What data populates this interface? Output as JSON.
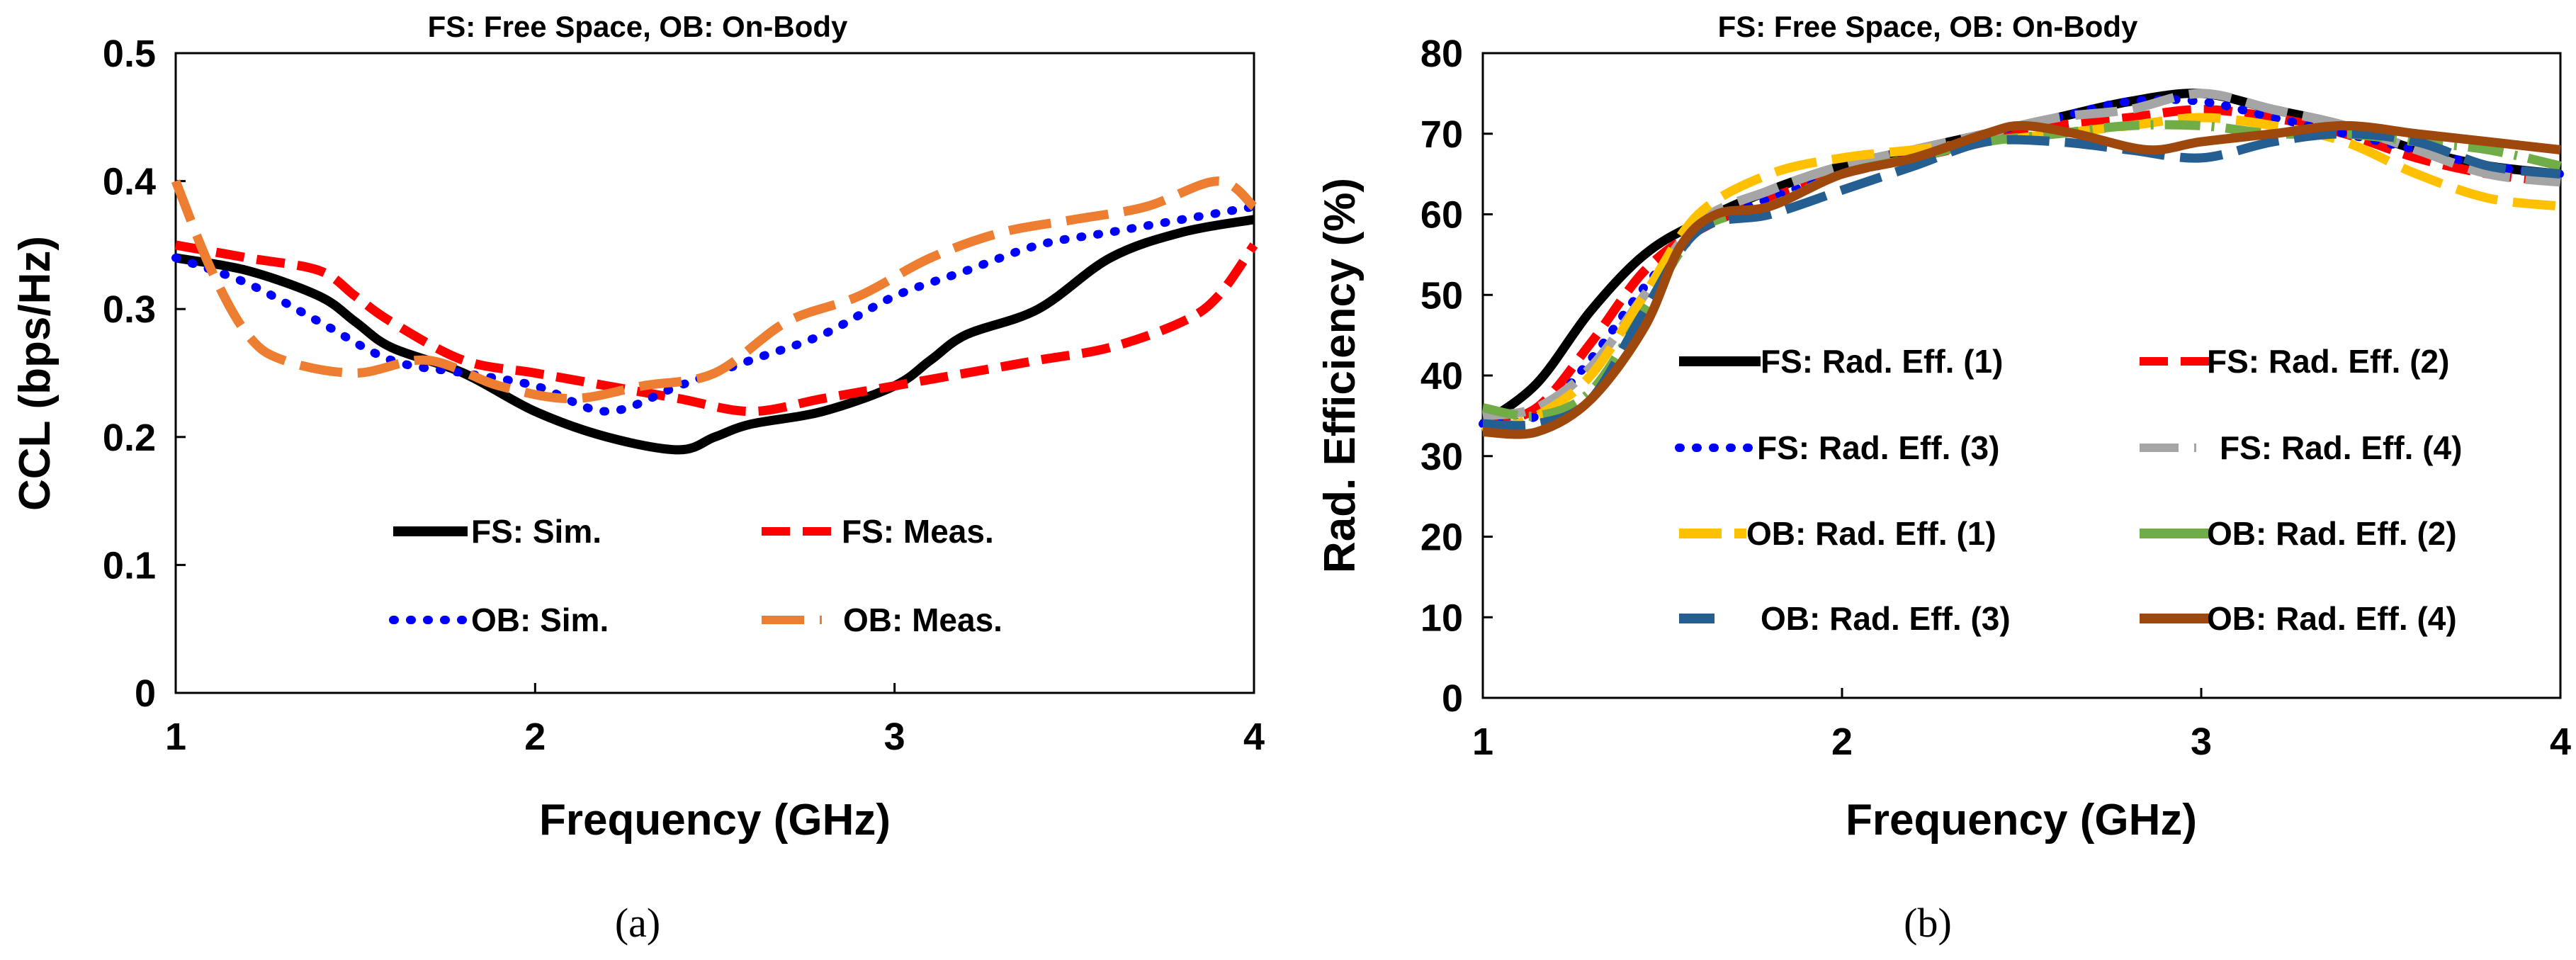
{
  "chart_data": [
    {
      "type": "line",
      "title": "FS: Free Space, OB: On-Body",
      "xlabel": "Frequency (GHz)",
      "ylabel": "CCL (bps/Hz)",
      "xlim": [
        1,
        4
      ],
      "ylim": [
        0,
        0.5
      ],
      "xticks": [
        "1",
        "2",
        "3",
        "4"
      ],
      "yticks": [
        "0",
        "0.1",
        "0.2",
        "0.3",
        "0.4",
        "0.5"
      ],
      "caption": "(a)",
      "series": [
        {
          "name": "FS: Sim.",
          "color": "#000000",
          "style": "solid",
          "points": [
            [
              1,
              0.34
            ],
            [
              1.2,
              0.33
            ],
            [
              1.4,
              0.31
            ],
            [
              1.5,
              0.29
            ],
            [
              1.6,
              0.27
            ],
            [
              1.8,
              0.25
            ],
            [
              2.0,
              0.22
            ],
            [
              2.2,
              0.2
            ],
            [
              2.4,
              0.19
            ],
            [
              2.5,
              0.2
            ],
            [
              2.6,
              0.21
            ],
            [
              2.8,
              0.22
            ],
            [
              3.0,
              0.24
            ],
            [
              3.1,
              0.26
            ],
            [
              3.2,
              0.28
            ],
            [
              3.4,
              0.3
            ],
            [
              3.6,
              0.34
            ],
            [
              3.8,
              0.36
            ],
            [
              4.0,
              0.37
            ]
          ]
        },
        {
          "name": "FS: Meas.",
          "color": "#ff0000",
          "style": "dash",
          "points": [
            [
              1,
              0.35
            ],
            [
              1.2,
              0.34
            ],
            [
              1.4,
              0.33
            ],
            [
              1.5,
              0.31
            ],
            [
              1.6,
              0.29
            ],
            [
              1.8,
              0.26
            ],
            [
              2.0,
              0.25
            ],
            [
              2.2,
              0.24
            ],
            [
              2.4,
              0.23
            ],
            [
              2.6,
              0.22
            ],
            [
              2.8,
              0.23
            ],
            [
              3.0,
              0.24
            ],
            [
              3.2,
              0.25
            ],
            [
              3.4,
              0.26
            ],
            [
              3.6,
              0.27
            ],
            [
              3.8,
              0.29
            ],
            [
              3.9,
              0.31
            ],
            [
              4.0,
              0.35
            ]
          ]
        },
        {
          "name": "OB: Sim.",
          "color": "#0000ff",
          "style": "dot",
          "points": [
            [
              1,
              0.34
            ],
            [
              1.2,
              0.32
            ],
            [
              1.4,
              0.29
            ],
            [
              1.6,
              0.26
            ],
            [
              1.8,
              0.25
            ],
            [
              2.0,
              0.24
            ],
            [
              2.2,
              0.22
            ],
            [
              2.4,
              0.24
            ],
            [
              2.6,
              0.26
            ],
            [
              2.8,
              0.28
            ],
            [
              3.0,
              0.31
            ],
            [
              3.2,
              0.33
            ],
            [
              3.4,
              0.35
            ],
            [
              3.6,
              0.36
            ],
            [
              3.8,
              0.37
            ],
            [
              4.0,
              0.38
            ]
          ]
        },
        {
          "name": "OB: Meas.",
          "color": "#ed7d31",
          "style": "longdash",
          "points": [
            [
              1,
              0.4
            ],
            [
              1.1,
              0.33
            ],
            [
              1.2,
              0.28
            ],
            [
              1.3,
              0.26
            ],
            [
              1.5,
              0.25
            ],
            [
              1.7,
              0.26
            ],
            [
              1.9,
              0.24
            ],
            [
              2.1,
              0.23
            ],
            [
              2.3,
              0.24
            ],
            [
              2.5,
              0.25
            ],
            [
              2.7,
              0.29
            ],
            [
              2.9,
              0.31
            ],
            [
              3.1,
              0.34
            ],
            [
              3.3,
              0.36
            ],
            [
              3.5,
              0.37
            ],
            [
              3.7,
              0.38
            ],
            [
              3.9,
              0.4
            ],
            [
              4.0,
              0.38
            ]
          ]
        }
      ]
    },
    {
      "type": "line",
      "title": "FS: Free Space, OB: On-Body",
      "xlabel": "Frequency (GHz)",
      "ylabel": "Rad. Efficiency (%)",
      "xlim": [
        1,
        4
      ],
      "ylim": [
        0,
        80
      ],
      "xticks": [
        "1",
        "2",
        "3",
        "4"
      ],
      "yticks": [
        "0",
        "10",
        "20",
        "30",
        "40",
        "50",
        "60",
        "70",
        "80"
      ],
      "caption": "(b)",
      "series": [
        {
          "name": "FS: Rad. Eff. (1)",
          "color": "#000000",
          "style": "solid",
          "points": [
            [
              1,
              34
            ],
            [
              1.15,
              39
            ],
            [
              1.3,
              48
            ],
            [
              1.45,
              55
            ],
            [
              1.6,
              59
            ],
            [
              1.8,
              63
            ],
            [
              2.0,
              66
            ],
            [
              2.2,
              68
            ],
            [
              2.4,
              70
            ],
            [
              2.6,
              72
            ],
            [
              2.8,
              74
            ],
            [
              3.0,
              75
            ],
            [
              3.2,
              73
            ],
            [
              3.4,
              71
            ],
            [
              3.6,
              68
            ],
            [
              3.8,
              66
            ],
            [
              4.0,
              65
            ]
          ]
        },
        {
          "name": "FS: Rad. Eff. (2)",
          "color": "#ff0000",
          "style": "dash",
          "points": [
            [
              1,
              34
            ],
            [
              1.15,
              36
            ],
            [
              1.3,
              44
            ],
            [
              1.45,
              53
            ],
            [
              1.6,
              58
            ],
            [
              1.8,
              62
            ],
            [
              2.0,
              65
            ],
            [
              2.2,
              67
            ],
            [
              2.4,
              69
            ],
            [
              2.6,
              71
            ],
            [
              2.8,
              72
            ],
            [
              3.0,
              73
            ],
            [
              3.2,
              72
            ],
            [
              3.4,
              70
            ],
            [
              3.6,
              67
            ],
            [
              3.8,
              65
            ],
            [
              4.0,
              64
            ]
          ]
        },
        {
          "name": "FS: Rad. Eff. (3)",
          "color": "#0000ff",
          "style": "dot",
          "points": [
            [
              1,
              34
            ],
            [
              1.15,
              35
            ],
            [
              1.3,
              42
            ],
            [
              1.45,
              51
            ],
            [
              1.6,
              58
            ],
            [
              1.8,
              62
            ],
            [
              2.0,
              65
            ],
            [
              2.2,
              67
            ],
            [
              2.4,
              70
            ],
            [
              2.6,
              72
            ],
            [
              2.8,
              74
            ],
            [
              3.0,
              74
            ],
            [
              3.2,
              72
            ],
            [
              3.4,
              70
            ],
            [
              3.6,
              68
            ],
            [
              3.8,
              66
            ],
            [
              4.0,
              65
            ]
          ]
        },
        {
          "name": "FS: Rad. Eff. (4)",
          "color": "#a5a5a5",
          "style": "longdash",
          "points": [
            [
              1,
              35
            ],
            [
              1.15,
              36
            ],
            [
              1.3,
              41
            ],
            [
              1.45,
              50
            ],
            [
              1.6,
              59
            ],
            [
              1.8,
              63
            ],
            [
              2.0,
              66
            ],
            [
              2.2,
              68
            ],
            [
              2.4,
              70
            ],
            [
              2.6,
              72
            ],
            [
              2.8,
              73
            ],
            [
              3.0,
              75
            ],
            [
              3.2,
              73
            ],
            [
              3.4,
              71
            ],
            [
              3.6,
              68
            ],
            [
              3.8,
              65
            ],
            [
              4.0,
              64
            ]
          ]
        },
        {
          "name": "OB: Rad. Eff. (1)",
          "color": "#ffc000",
          "style": "longdash",
          "points": [
            [
              1,
              33
            ],
            [
              1.15,
              35
            ],
            [
              1.3,
              40
            ],
            [
              1.45,
              50
            ],
            [
              1.6,
              60
            ],
            [
              1.8,
              65
            ],
            [
              2.0,
              67
            ],
            [
              2.2,
              68
            ],
            [
              2.4,
              69
            ],
            [
              2.6,
              70
            ],
            [
              2.8,
              71
            ],
            [
              3.0,
              72
            ],
            [
              3.2,
              71
            ],
            [
              3.4,
              69
            ],
            [
              3.6,
              65
            ],
            [
              3.8,
              62
            ],
            [
              4.0,
              61
            ]
          ]
        },
        {
          "name": "OB: Rad. Eff. (2)",
          "color": "#70ad47",
          "style": "dashdot",
          "points": [
            [
              1,
              36
            ],
            [
              1.15,
              35
            ],
            [
              1.3,
              38
            ],
            [
              1.45,
              48
            ],
            [
              1.6,
              58
            ],
            [
              1.8,
              61
            ],
            [
              2.0,
              65
            ],
            [
              2.2,
              67
            ],
            [
              2.4,
              69
            ],
            [
              2.6,
              70
            ],
            [
              2.8,
              71
            ],
            [
              3.0,
              71
            ],
            [
              3.2,
              70
            ],
            [
              3.4,
              70
            ],
            [
              3.6,
              69
            ],
            [
              3.8,
              68
            ],
            [
              4.0,
              66
            ]
          ]
        },
        {
          "name": "OB: Rad. Eff. (3)",
          "color": "#255e91",
          "style": "longdash",
          "points": [
            [
              1,
              34
            ],
            [
              1.15,
              34
            ],
            [
              1.3,
              37
            ],
            [
              1.45,
              48
            ],
            [
              1.6,
              58
            ],
            [
              1.8,
              60
            ],
            [
              2.0,
              63
            ],
            [
              2.2,
              66
            ],
            [
              2.4,
              69
            ],
            [
              2.6,
              69
            ],
            [
              2.8,
              68
            ],
            [
              3.0,
              67
            ],
            [
              3.2,
              69
            ],
            [
              3.4,
              70
            ],
            [
              3.6,
              69
            ],
            [
              3.8,
              66
            ],
            [
              4.0,
              65
            ]
          ]
        },
        {
          "name": "OB: Rad. Eff. (4)",
          "color": "#9e480e",
          "style": "solid",
          "points": [
            [
              1,
              33
            ],
            [
              1.15,
              33
            ],
            [
              1.3,
              37
            ],
            [
              1.45,
              46
            ],
            [
              1.55,
              56
            ],
            [
              1.65,
              60
            ],
            [
              1.8,
              61
            ],
            [
              2.0,
              65
            ],
            [
              2.2,
              67
            ],
            [
              2.4,
              70
            ],
            [
              2.5,
              71
            ],
            [
              2.65,
              70
            ],
            [
              2.85,
              68
            ],
            [
              3.0,
              69
            ],
            [
              3.2,
              70
            ],
            [
              3.4,
              71
            ],
            [
              3.6,
              70
            ],
            [
              3.8,
              69
            ],
            [
              4.0,
              68
            ]
          ]
        }
      ]
    }
  ]
}
